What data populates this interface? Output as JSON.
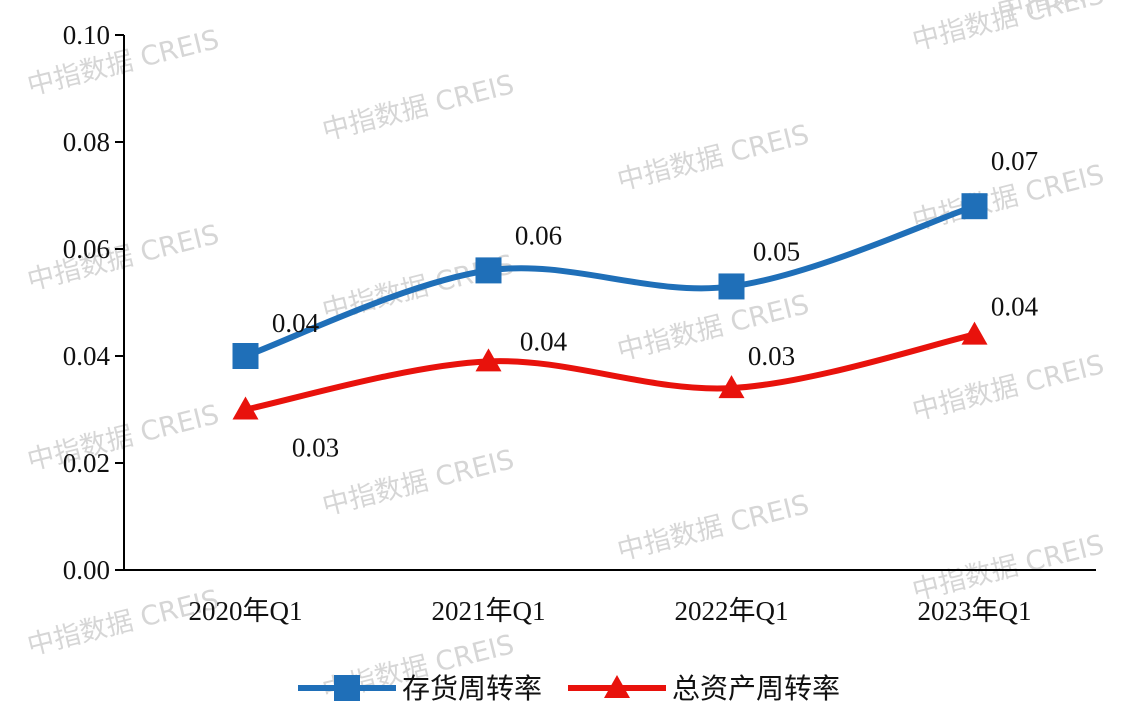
{
  "watermark_text": "中指数据 CREIS",
  "chart_data": {
    "type": "line",
    "categories": [
      "2020年Q1",
      "2021年Q1",
      "2022年Q1",
      "2023年Q1"
    ],
    "y_ticks": [
      "0.00",
      "0.02",
      "0.04",
      "0.06",
      "0.08",
      "0.10"
    ],
    "ylim": [
      0,
      0.1
    ],
    "grid": false,
    "legend_position": "bottom",
    "series": [
      {
        "name": "存货周转率",
        "color": "#1f6fb8",
        "marker": "square",
        "values": [
          0.04,
          0.056,
          0.053,
          0.068
        ],
        "labels": [
          "0.04",
          "0.06",
          "0.05",
          "0.07"
        ]
      },
      {
        "name": "总资产周转率",
        "color": "#e8120c",
        "marker": "triangle",
        "values": [
          0.03,
          0.039,
          0.034,
          0.044
        ],
        "labels": [
          "0.03",
          "0.04",
          "0.03",
          "0.04"
        ]
      }
    ]
  }
}
